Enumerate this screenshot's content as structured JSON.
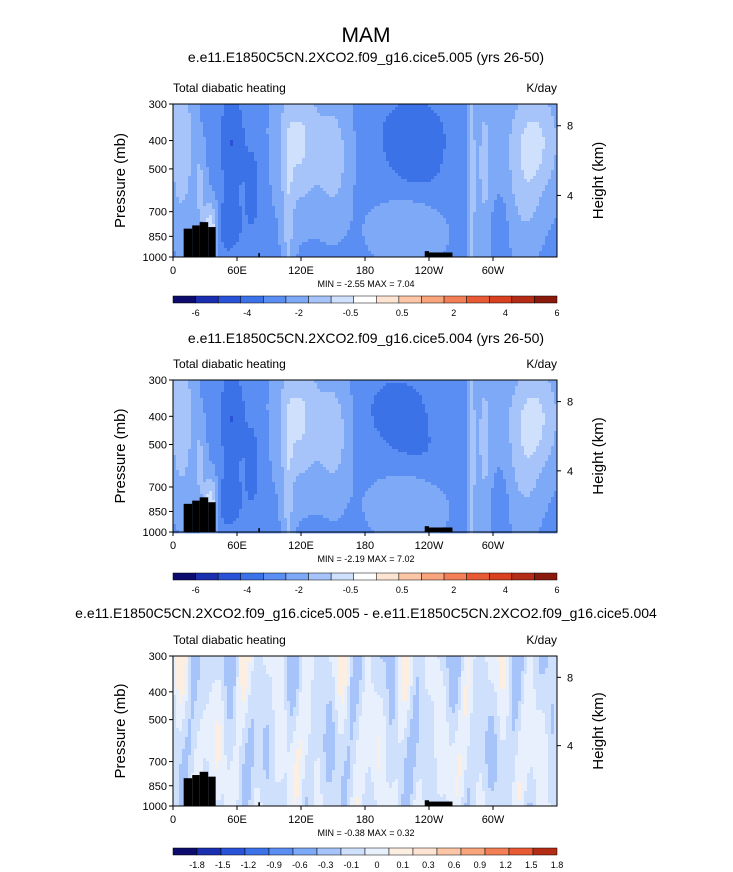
{
  "figure": {
    "title": "MAM"
  },
  "chart_data": [
    {
      "type": "heatmap",
      "title": "e.e11.E1850C5CN.2XCO2.f09_g16.cice5.005 (yrs 26-50)",
      "left_label": "Total diabatic heating",
      "right_label": "K/day",
      "ylabel": "Pressure (mb)",
      "y2label": "Height (km)",
      "xticks": [
        "0",
        "60E",
        "120E",
        "180",
        "120W",
        "60W"
      ],
      "yticks": [
        "300",
        "400",
        "500",
        "700",
        "850",
        "1000"
      ],
      "y2ticks": [
        "8",
        "4"
      ],
      "x_range_deg_east": [
        0,
        360
      ],
      "y_range_mb": [
        1000,
        300
      ],
      "stats": "MIN = -2.55  MAX =  7.04",
      "colorbar": {
        "levels": [
          "-6",
          "-4",
          "-2",
          "-0.5",
          "0.5",
          "2",
          "4",
          "6"
        ],
        "colors": [
          "#0c0c6e",
          "#1a2eb0",
          "#2a52d6",
          "#3c72e8",
          "#5a8ef2",
          "#7ea9f6",
          "#a6c4fa",
          "#cfe0fc",
          "#ffffff",
          "#fde4d2",
          "#fcc6a6",
          "#f8a47c",
          "#f27f56",
          "#e85a34",
          "#d8401f",
          "#b52c16",
          "#8a1a0e"
        ]
      },
      "min": -2.55,
      "max": 7.04
    },
    {
      "type": "heatmap",
      "title": "e.e11.E1850C5CN.2XCO2.f09_g16.cice5.004 (yrs 26-50)",
      "left_label": "Total diabatic heating",
      "right_label": "K/day",
      "ylabel": "Pressure (mb)",
      "y2label": "Height (km)",
      "xticks": [
        "0",
        "60E",
        "120E",
        "180",
        "120W",
        "60W"
      ],
      "yticks": [
        "300",
        "400",
        "500",
        "700",
        "850",
        "1000"
      ],
      "y2ticks": [
        "8",
        "4"
      ],
      "x_range_deg_east": [
        0,
        360
      ],
      "y_range_mb": [
        1000,
        300
      ],
      "stats": "MIN = -2.19  MAX =  7.02",
      "colorbar": {
        "levels": [
          "-6",
          "-4",
          "-2",
          "-0.5",
          "0.5",
          "2",
          "4",
          "6"
        ],
        "colors": [
          "#0c0c6e",
          "#1a2eb0",
          "#2a52d6",
          "#3c72e8",
          "#5a8ef2",
          "#7ea9f6",
          "#a6c4fa",
          "#cfe0fc",
          "#ffffff",
          "#fde4d2",
          "#fcc6a6",
          "#f8a47c",
          "#f27f56",
          "#e85a34",
          "#d8401f",
          "#b52c16",
          "#8a1a0e"
        ]
      },
      "min": -2.19,
      "max": 7.02
    },
    {
      "type": "heatmap",
      "title": "e.e11.E1850C5CN.2XCO2.f09_g16.cice5.005 - e.e11.E1850C5CN.2XCO2.f09_g16.cice5.004",
      "left_label": "Total diabatic heating",
      "right_label": "K/day",
      "ylabel": "Pressure (mb)",
      "y2label": "Height (km)",
      "xticks": [
        "0",
        "60E",
        "120E",
        "180",
        "120W",
        "60W"
      ],
      "yticks": [
        "300",
        "400",
        "500",
        "700",
        "850",
        "1000"
      ],
      "y2ticks": [
        "8",
        "4"
      ],
      "x_range_deg_east": [
        0,
        360
      ],
      "y_range_mb": [
        1000,
        300
      ],
      "stats": "MIN = -0.38  MAX =  0.32",
      "colorbar": {
        "levels": [
          "-1.8",
          "-1.5",
          "-1.2",
          "-0.9",
          "-0.6",
          "-0.3",
          "-0.1",
          "0",
          "0.1",
          "0.3",
          "0.6",
          "0.9",
          "1.2",
          "1.5",
          "1.8"
        ],
        "colors": [
          "#0c0c6e",
          "#1a2eb0",
          "#2a52d6",
          "#3c72e8",
          "#5a8ef2",
          "#7ea9f6",
          "#a6c4fa",
          "#cfe0fc",
          "#e8f0fe",
          "#fdeee2",
          "#fde4d2",
          "#fcc6a6",
          "#f8a47c",
          "#f27f56",
          "#e85a34",
          "#b52c16"
        ]
      },
      "min": -0.38,
      "max": 0.32
    }
  ]
}
